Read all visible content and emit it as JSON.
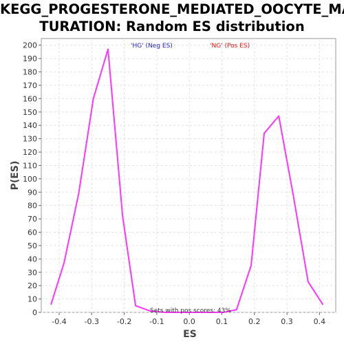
{
  "chart_data": {
    "type": "line",
    "title_line1": "KEGG_PROGESTERONE_MEDIATED_OOCYTE_MA",
    "title_line2": "TURATION: Random ES distribution",
    "xlabel": "ES",
    "ylabel": "P(ES)",
    "xlim": [
      -0.455,
      0.45
    ],
    "ylim": [
      0,
      205
    ],
    "xticks": [
      -0.4,
      -0.3,
      -0.2,
      -0.1,
      0.0,
      0.1,
      0.2,
      0.3,
      0.4
    ],
    "xtick_labels": [
      "-0.4",
      "-0.3",
      "-0.2",
      "-0.1",
      "0.0",
      "0.1",
      "0.2",
      "0.3",
      "0.4"
    ],
    "yticks": [
      0,
      10,
      20,
      30,
      40,
      50,
      60,
      70,
      80,
      90,
      100,
      110,
      120,
      130,
      140,
      150,
      160,
      170,
      180,
      190,
      200
    ],
    "ytick_labels": [
      "0",
      "10",
      "20",
      "30",
      "40",
      "50",
      "60",
      "70",
      "80",
      "90",
      "100",
      "110",
      "120",
      "130",
      "140",
      "150",
      "160",
      "170",
      "180",
      "190",
      "200"
    ],
    "grid": true,
    "line_color": "#ff33ff",
    "series": [
      {
        "x": [
          -0.425,
          -0.385,
          -0.34,
          -0.295,
          -0.25,
          -0.205,
          -0.165,
          -0.12,
          -0.075,
          -0.03,
          0.015,
          0.06,
          0.105,
          0.145,
          0.19,
          0.23,
          0.275,
          0.32,
          0.365,
          0.41
        ],
        "y": [
          6,
          37,
          89,
          160,
          197,
          72,
          5,
          1,
          0,
          0,
          0,
          0,
          0,
          2,
          35,
          134,
          147,
          87,
          23,
          6
        ]
      }
    ],
    "annotations": {
      "neg_label": "'HG' (Neg ES)",
      "neg_color": "#2222cc",
      "pos_label": "'NG' (Pos ES)",
      "pos_color": "#ee1111",
      "pos_scores_text": "Sets with pos scores: 43%",
      "pos_scores_color": "#333333"
    }
  }
}
